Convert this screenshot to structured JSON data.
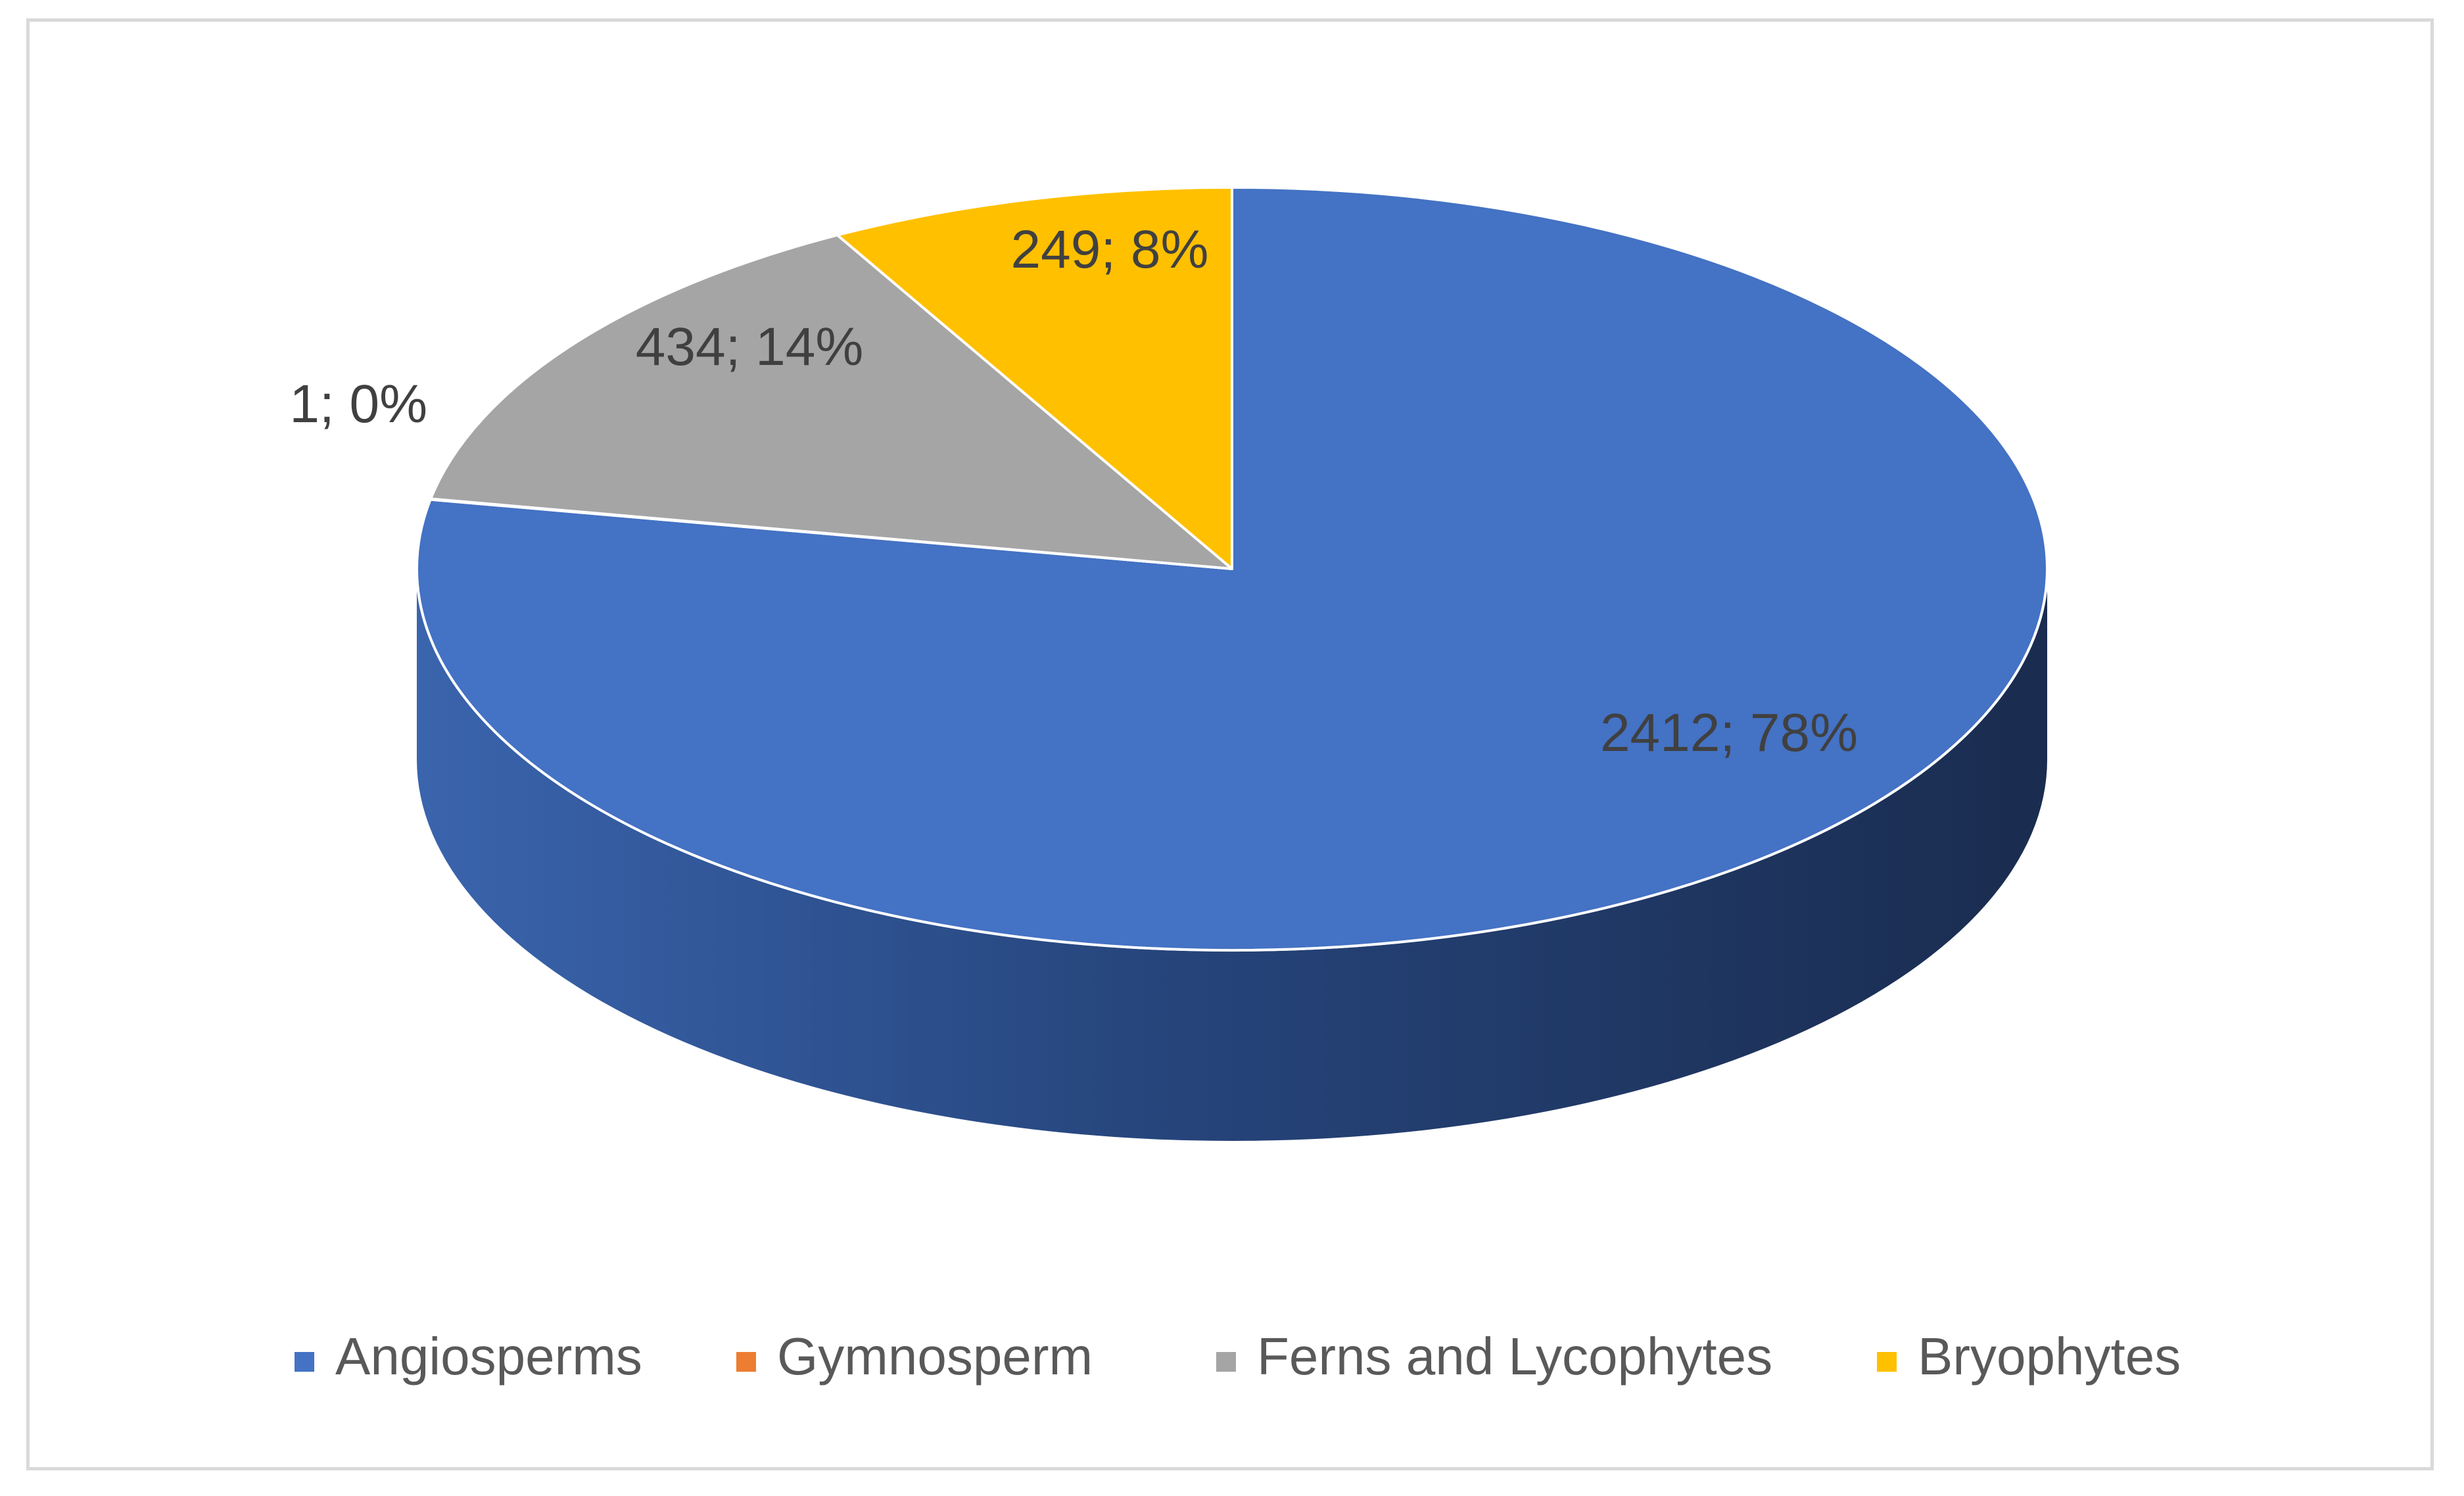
{
  "chart_data": {
    "type": "pie",
    "style": "3d",
    "title": "",
    "legend_position": "bottom",
    "slices": [
      {
        "name": "Angiosperms",
        "value": 2412,
        "percent": 78,
        "label": "2412; 78%",
        "color": "#4472C4"
      },
      {
        "name": "Gymnosperm",
        "value": 1,
        "percent": 0,
        "label": "1; 0%",
        "color": "#ED7D31"
      },
      {
        "name": "Ferns and Lycophytes",
        "value": 434,
        "percent": 14,
        "label": "434; 14%",
        "color": "#A5A5A5"
      },
      {
        "name": "Bryophytes",
        "value": 249,
        "percent": 8,
        "label": "249; 8%",
        "color": "#FFC000"
      }
    ]
  }
}
